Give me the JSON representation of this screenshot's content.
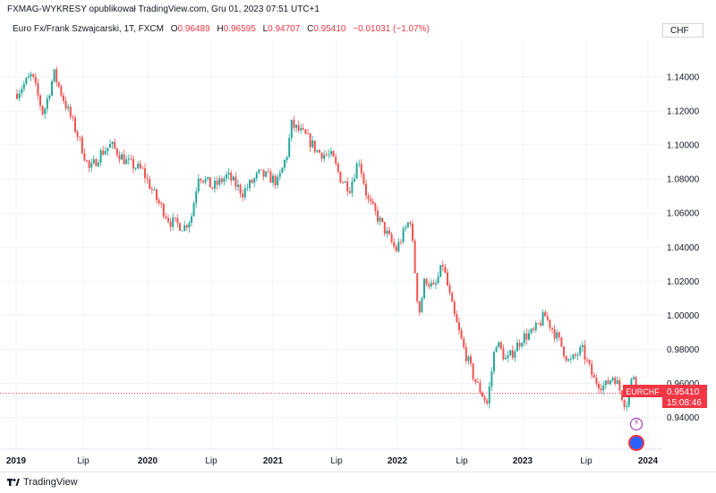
{
  "header": {
    "publisher_line": "FXMAG-WYKRESY opublikował TradingView.com, Gru 01, 2023 07:51 UTC+1"
  },
  "legend": {
    "symbol_title": "Euro Fx/Frank Szwajcarski, 1T, FXCM",
    "open_label": "O",
    "open_value": "0.96489",
    "high_label": "H",
    "high_value": "0.96595",
    "low_label": "L",
    "low_value": "0.94707",
    "close_label": "C",
    "close_value": "0.95410",
    "change": "−0.01031 (−1.07%)"
  },
  "currency_label": "CHF",
  "price_tag": {
    "symbol": "EURCHF",
    "price": "0.95410",
    "countdown": "15:08:46"
  },
  "footer": {
    "brand": "TradingView"
  },
  "colors": {
    "up": "#26a69a",
    "down": "#ef5350",
    "tag": "#f23645",
    "flash": "#9c27b0",
    "globe": "#2962ff"
  },
  "icons": {
    "flash": "lightning-icon",
    "globe": "globe-icon",
    "logo": "tradingview-logo-icon"
  },
  "chart_data": {
    "type": "candlestick",
    "xlabel": "",
    "ylabel": "",
    "ylim": [
      0.93,
      1.15
    ],
    "y_ticks": [
      "1.14000",
      "1.12000",
      "1.10000",
      "1.08000",
      "1.06000",
      "1.04000",
      "1.02000",
      "1.00000",
      "0.98000",
      "0.96000",
      "0.94000"
    ],
    "x_ticks": [
      "2019",
      "Lip",
      "2020",
      "Lip",
      "2021",
      "Lip",
      "2022",
      "Lip",
      "2023",
      "Lip",
      "2024"
    ],
    "grid": true,
    "last_price": 0.9541,
    "price_path": [
      [
        "2018-12-31",
        1.13
      ],
      [
        "2019-02-15",
        1.141
      ],
      [
        "2019-03-20",
        1.118
      ],
      [
        "2019-04-20",
        1.142
      ],
      [
        "2019-05-25",
        1.123
      ],
      [
        "2019-06-25",
        1.107
      ],
      [
        "2019-08-01",
        1.085
      ],
      [
        "2019-09-01",
        1.095
      ],
      [
        "2019-10-01",
        1.1
      ],
      [
        "2019-11-15",
        1.09
      ],
      [
        "2019-12-31",
        1.085
      ],
      [
        "2020-02-10",
        1.068
      ],
      [
        "2020-03-20",
        1.055
      ],
      [
        "2020-04-30",
        1.052
      ],
      [
        "2020-05-20",
        1.058
      ],
      [
        "2020-06-10",
        1.083
      ],
      [
        "2020-07-20",
        1.075
      ],
      [
        "2020-09-01",
        1.082
      ],
      [
        "2020-10-15",
        1.072
      ],
      [
        "2020-12-01",
        1.083
      ],
      [
        "2020-12-31",
        1.081
      ],
      [
        "2021-01-25",
        1.078
      ],
      [
        "2021-02-20",
        1.095
      ],
      [
        "2021-03-05",
        1.112
      ],
      [
        "2021-04-15",
        1.105
      ],
      [
        "2021-05-20",
        1.096
      ],
      [
        "2021-06-30",
        1.093
      ],
      [
        "2021-07-25",
        1.08
      ],
      [
        "2021-08-20",
        1.075
      ],
      [
        "2021-09-15",
        1.092
      ],
      [
        "2021-10-10",
        1.068
      ],
      [
        "2021-11-15",
        1.055
      ],
      [
        "2021-12-31",
        1.038
      ],
      [
        "2022-02-10",
        1.057
      ],
      [
        "2022-03-07",
        1.0
      ],
      [
        "2022-03-25",
        1.022
      ],
      [
        "2022-04-20",
        1.015
      ],
      [
        "2022-05-15",
        1.03
      ],
      [
        "2022-06-15",
        1.001
      ],
      [
        "2022-07-15",
        0.98
      ],
      [
        "2022-08-15",
        0.962
      ],
      [
        "2022-09-20",
        0.948
      ],
      [
        "2022-10-15",
        0.985
      ],
      [
        "2022-11-15",
        0.973
      ],
      [
        "2022-12-31",
        0.987
      ],
      [
        "2023-02-01",
        0.99
      ],
      [
        "2023-03-05",
        1.0
      ],
      [
        "2023-04-15",
        0.985
      ],
      [
        "2023-05-15",
        0.972
      ],
      [
        "2023-06-20",
        0.98
      ],
      [
        "2023-07-25",
        0.962
      ],
      [
        "2023-08-25",
        0.958
      ],
      [
        "2023-09-20",
        0.965
      ],
      [
        "2023-10-25",
        0.947
      ],
      [
        "2023-11-15",
        0.966
      ],
      [
        "2023-12-01",
        0.954
      ]
    ]
  }
}
